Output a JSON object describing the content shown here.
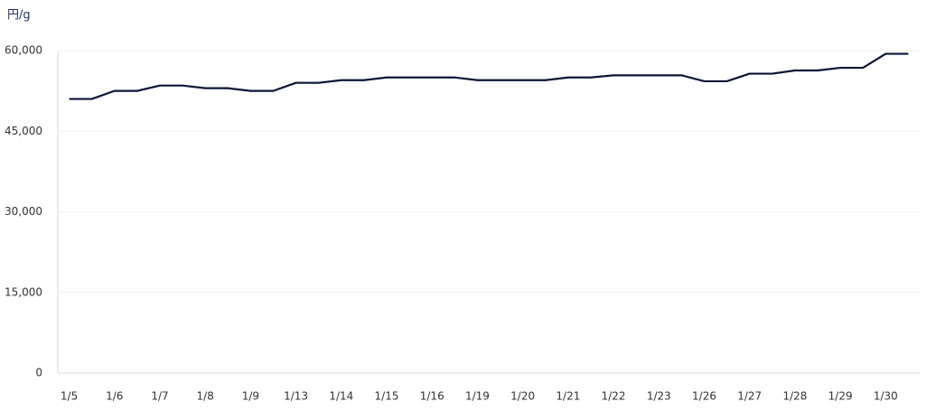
{
  "chart_data": {
    "type": "line",
    "y_label": "円/g",
    "categories": [
      "1/5",
      null,
      "1/6",
      null,
      "1/7",
      null,
      "1/8",
      null,
      "1/9",
      null,
      "1/13",
      null,
      "1/14",
      null,
      "1/15",
      null,
      "1/16",
      null,
      "1/19",
      null,
      "1/20",
      null,
      "1/21",
      null,
      "1/22",
      null,
      "1/23",
      null,
      "1/26",
      null,
      "1/27",
      null,
      "1/28",
      null,
      "1/29",
      null,
      "1/30",
      null
    ],
    "series": [
      {
        "color": "#0b1537",
        "values": [
          51000,
          51000,
          52500,
          52500,
          53500,
          53500,
          53000,
          53000,
          52500,
          52500,
          54000,
          54000,
          54500,
          54500,
          55000,
          55000,
          55000,
          55000,
          54500,
          54500,
          54500,
          54500,
          55000,
          55000,
          55400,
          55400,
          55400,
          55400,
          54300,
          54300,
          55700,
          55700,
          56300,
          56300,
          56800,
          56800,
          59400,
          59400
        ]
      }
    ],
    "ylim": [
      0,
      60000
    ],
    "yticks": [
      {
        "value": 0,
        "label": "0"
      },
      {
        "value": 15000,
        "label": "15,000"
      },
      {
        "value": 30000,
        "label": "30,000"
      },
      {
        "value": 45000,
        "label": "45,000"
      },
      {
        "value": 60000,
        "label": "60,000"
      }
    ],
    "grid": true
  }
}
